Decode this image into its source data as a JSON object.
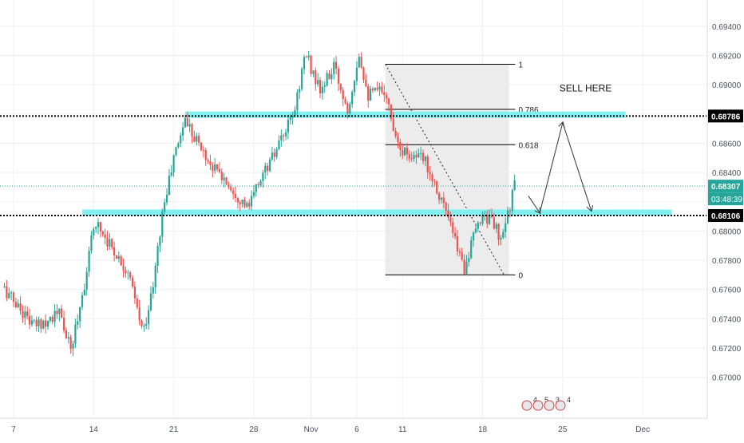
{
  "colors": {
    "bull": "#26a69a",
    "bear": "#ef5350",
    "zone": "#80f0f0",
    "grid": "#eef0f3",
    "axis_text": "#4a4f5a",
    "fib_box": "#ececec",
    "current": "#26a69a",
    "level_tag": "#000000"
  },
  "chart_data": {
    "type": "candlestick",
    "instrument_hint": "currency pair",
    "ylim": [
      0.669,
      0.6955
    ],
    "y_ticks": [
      "0.69400",
      "0.69200",
      "0.69000",
      "0.68800",
      "0.68600",
      "0.68400",
      "0.68200",
      "0.68000",
      "0.67800",
      "0.67600",
      "0.67400",
      "0.67200",
      "0.67000"
    ],
    "x_ticks": [
      "7",
      "14",
      "21",
      "28",
      "Nov",
      "6",
      "11",
      "18",
      "25",
      "Dec"
    ],
    "x_tick_days": [
      0,
      7,
      14,
      21,
      26,
      30,
      34,
      41,
      48,
      55
    ],
    "xlim_days": [
      -1,
      59
    ],
    "anchors": [
      {
        "day": -1.0,
        "price": 0.6762
      },
      {
        "day": 1.8,
        "price": 0.6735
      },
      {
        "day": 4.0,
        "price": 0.6744
      },
      {
        "day": 5.0,
        "price": 0.6718
      },
      {
        "day": 6.3,
        "price": 0.6768
      },
      {
        "day": 7.1,
        "price": 0.6808
      },
      {
        "day": 8.5,
        "price": 0.679
      },
      {
        "day": 10.0,
        "price": 0.6772
      },
      {
        "day": 11.3,
        "price": 0.673
      },
      {
        "day": 12.2,
        "price": 0.6762
      },
      {
        "day": 13.0,
        "price": 0.6812
      },
      {
        "day": 14.0,
        "price": 0.685
      },
      {
        "day": 15.0,
        "price": 0.6877
      },
      {
        "day": 17.0,
        "price": 0.6848
      },
      {
        "day": 19.0,
        "price": 0.683
      },
      {
        "day": 20.5,
        "price": 0.6815
      },
      {
        "day": 21.5,
        "price": 0.6835
      },
      {
        "day": 23.0,
        "price": 0.6855
      },
      {
        "day": 24.5,
        "price": 0.688
      },
      {
        "day": 25.5,
        "price": 0.6922
      },
      {
        "day": 26.8,
        "price": 0.6895
      },
      {
        "day": 28.0,
        "price": 0.6912
      },
      {
        "day": 29.2,
        "price": 0.6883
      },
      {
        "day": 30.2,
        "price": 0.6922
      },
      {
        "day": 31.0,
        "price": 0.6893
      },
      {
        "day": 32.5,
        "price": 0.6897
      },
      {
        "day": 33.0,
        "price": 0.6876
      },
      {
        "day": 34.0,
        "price": 0.6855
      },
      {
        "day": 36.0,
        "price": 0.6848
      },
      {
        "day": 37.6,
        "price": 0.6818
      },
      {
        "day": 38.5,
        "price": 0.6795
      },
      {
        "day": 39.4,
        "price": 0.6775
      },
      {
        "day": 40.2,
        "price": 0.6795
      },
      {
        "day": 41.0,
        "price": 0.6812
      },
      {
        "day": 42.0,
        "price": 0.6805
      },
      {
        "day": 42.6,
        "price": 0.6791
      },
      {
        "day": 43.2,
        "price": 0.6812
      },
      {
        "day": 43.8,
        "price": 0.6831
      }
    ],
    "support_level": 0.68106,
    "resistance_level": 0.68786,
    "current_price": 0.68307,
    "countdown": "03:48:39",
    "price_tags": {
      "resistance": "0.68786",
      "current": "0.68307",
      "support": "0.68106"
    },
    "supply_zone": {
      "day_start": 15.0,
      "day_end": 53.5,
      "price": 0.68795
    },
    "demand_zone": {
      "day_start": 6.0,
      "day_end": 57.5,
      "price": 0.68125
    },
    "fibonacci": {
      "day_start": 32.5,
      "day_end": 43.3,
      "high": 0.6914,
      "low": 0.677,
      "levels": [
        {
          "ratio": 1,
          "label": "1"
        },
        {
          "ratio": 0.786,
          "label": "0.786"
        },
        {
          "ratio": 0.618,
          "label": "0.618"
        },
        {
          "ratio": 0,
          "label": "0"
        }
      ]
    },
    "annotation": {
      "text": "SELL HERE",
      "day": 50.0,
      "price": 0.68955
    },
    "projection_path": [
      {
        "day": 45.0,
        "price": 0.6824
      },
      {
        "day": 46.0,
        "price": 0.68125
      },
      {
        "day": 48.0,
        "price": 0.6874
      },
      {
        "day": 50.5,
        "price": 0.6814
      }
    ],
    "event_markers": [
      "4",
      "5",
      "3",
      "4"
    ]
  }
}
